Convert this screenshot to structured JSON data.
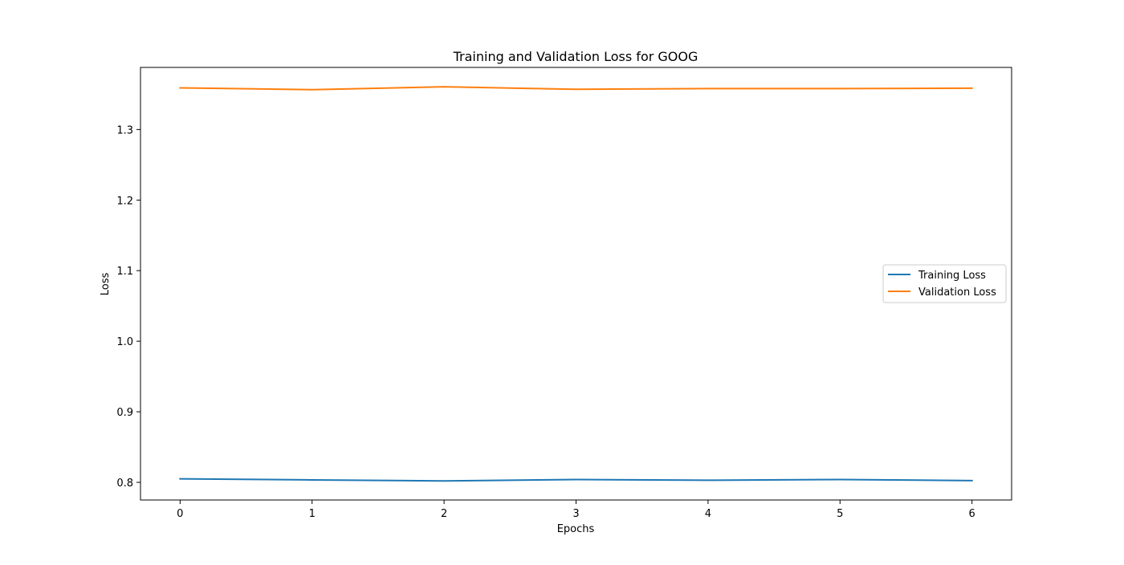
{
  "chart_data": {
    "type": "line",
    "title": "Training and Validation Loss for GOOG",
    "xlabel": "Epochs",
    "ylabel": "Loss",
    "x": [
      0,
      1,
      2,
      3,
      4,
      5,
      6
    ],
    "xlim": [
      -0.3,
      6.3
    ],
    "ylim": [
      0.775,
      1.388
    ],
    "xticks": [
      0,
      1,
      2,
      3,
      4,
      5,
      6
    ],
    "yticks": [
      0.8,
      0.9,
      1.0,
      1.1,
      1.2,
      1.3
    ],
    "ytick_labels": [
      "0.8",
      "0.9",
      "1.0",
      "1.1",
      "1.2",
      "1.3"
    ],
    "grid": false,
    "legend": {
      "position": "center-right"
    },
    "series": [
      {
        "name": "Training Loss",
        "color": "#1f77b4",
        "values": [
          0.805,
          0.8035,
          0.802,
          0.804,
          0.803,
          0.804,
          0.8025
        ]
      },
      {
        "name": "Validation Loss",
        "color": "#ff7f0e",
        "values": [
          1.359,
          1.3565,
          1.3605,
          1.357,
          1.358,
          1.358,
          1.3585
        ]
      }
    ]
  }
}
